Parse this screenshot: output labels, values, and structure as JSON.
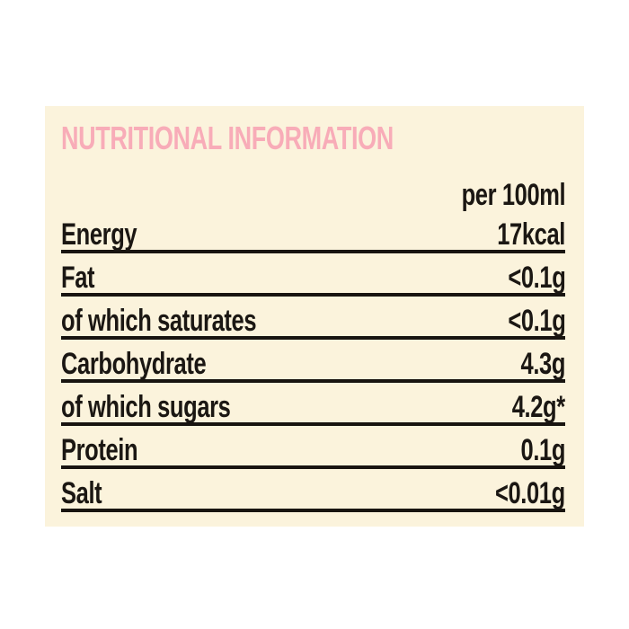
{
  "page": {
    "background": "#ffffff"
  },
  "panel": {
    "background": "#fbf3dc",
    "title": "NUTRITIONAL INFORMATION",
    "title_color": "#f8acb8",
    "text_color": "#1b1713",
    "rule_color": "#181410",
    "table": {
      "column_header": "per 100ml",
      "rows": [
        {
          "label": "Energy",
          "value": "17kcal"
        },
        {
          "label": "Fat",
          "value": "<0.1g"
        },
        {
          "label": "of which saturates",
          "value": "<0.1g"
        },
        {
          "label": "Carbohydrate",
          "value": "4.3g"
        },
        {
          "label": "of which sugars",
          "value": "4.2g*"
        },
        {
          "label": "Protein",
          "value": "0.1g"
        },
        {
          "label": "Salt",
          "value": "<0.01g"
        }
      ]
    }
  }
}
